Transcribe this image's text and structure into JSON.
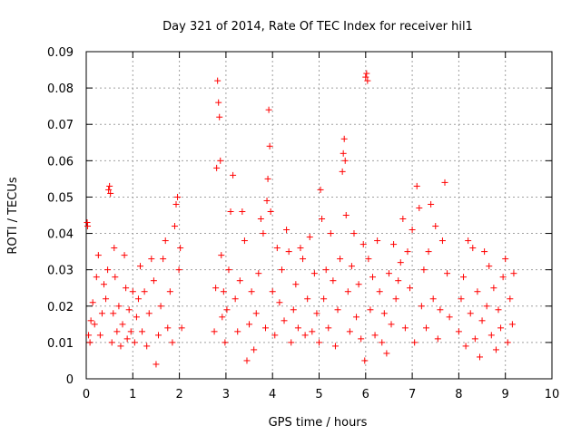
{
  "chart_data": {
    "type": "scatter",
    "title": "Day 321 of 2014, Rate Of TEC Index for receiver hil1",
    "xlabel": "GPS time / hours",
    "ylabel": "ROTI / TECUs",
    "xlim": [
      0,
      10
    ],
    "ylim": [
      0,
      0.09
    ],
    "x_ticks": [
      "0",
      "1",
      "2",
      "3",
      "4",
      "5",
      "6",
      "7",
      "8",
      "9",
      "10"
    ],
    "y_ticks": [
      "0",
      "0.01",
      "0.02",
      "0.03",
      "0.04",
      "0.05",
      "0.06",
      "0.07",
      "0.08",
      "0.09"
    ],
    "grid": true,
    "marker": "+",
    "marker_color": "#ff0000",
    "series": [
      {
        "name": "ROTI",
        "points": [
          [
            0.02,
            0.043
          ],
          [
            0.03,
            0.042
          ],
          [
            0.05,
            0.012
          ],
          [
            0.08,
            0.01
          ],
          [
            0.1,
            0.016
          ],
          [
            0.14,
            0.021
          ],
          [
            0.18,
            0.015
          ],
          [
            0.22,
            0.028
          ],
          [
            0.26,
            0.034
          ],
          [
            0.3,
            0.012
          ],
          [
            0.34,
            0.018
          ],
          [
            0.38,
            0.026
          ],
          [
            0.42,
            0.022
          ],
          [
            0.46,
            0.03
          ],
          [
            0.48,
            0.052
          ],
          [
            0.5,
            0.053
          ],
          [
            0.52,
            0.051
          ],
          [
            0.55,
            0.01
          ],
          [
            0.58,
            0.018
          ],
          [
            0.6,
            0.036
          ],
          [
            0.62,
            0.028
          ],
          [
            0.66,
            0.013
          ],
          [
            0.7,
            0.02
          ],
          [
            0.74,
            0.009
          ],
          [
            0.78,
            0.015
          ],
          [
            0.82,
            0.034
          ],
          [
            0.85,
            0.025
          ],
          [
            0.88,
            0.011
          ],
          [
            0.92,
            0.019
          ],
          [
            0.96,
            0.013
          ],
          [
            1.0,
            0.024
          ],
          [
            1.04,
            0.01
          ],
          [
            1.08,
            0.017
          ],
          [
            1.12,
            0.022
          ],
          [
            1.16,
            0.031
          ],
          [
            1.2,
            0.013
          ],
          [
            1.25,
            0.024
          ],
          [
            1.3,
            0.009
          ],
          [
            1.35,
            0.018
          ],
          [
            1.4,
            0.033
          ],
          [
            1.45,
            0.027
          ],
          [
            1.5,
            0.004
          ],
          [
            1.55,
            0.012
          ],
          [
            1.6,
            0.02
          ],
          [
            1.65,
            0.033
          ],
          [
            1.7,
            0.038
          ],
          [
            1.75,
            0.014
          ],
          [
            1.8,
            0.024
          ],
          [
            1.85,
            0.01
          ],
          [
            1.9,
            0.042
          ],
          [
            1.93,
            0.048
          ],
          [
            1.96,
            0.05
          ],
          [
            1.99,
            0.03
          ],
          [
            2.02,
            0.036
          ],
          [
            2.05,
            0.014
          ],
          [
            2.75,
            0.013
          ],
          [
            2.78,
            0.025
          ],
          [
            2.8,
            0.058
          ],
          [
            2.82,
            0.082
          ],
          [
            2.84,
            0.076
          ],
          [
            2.86,
            0.072
          ],
          [
            2.88,
            0.06
          ],
          [
            2.9,
            0.034
          ],
          [
            2.92,
            0.017
          ],
          [
            2.95,
            0.024
          ],
          [
            2.98,
            0.01
          ],
          [
            3.02,
            0.019
          ],
          [
            3.06,
            0.03
          ],
          [
            3.1,
            0.046
          ],
          [
            3.15,
            0.056
          ],
          [
            3.2,
            0.022
          ],
          [
            3.25,
            0.013
          ],
          [
            3.3,
            0.027
          ],
          [
            3.35,
            0.046
          ],
          [
            3.4,
            0.038
          ],
          [
            3.45,
            0.005
          ],
          [
            3.5,
            0.015
          ],
          [
            3.55,
            0.024
          ],
          [
            3.6,
            0.008
          ],
          [
            3.65,
            0.018
          ],
          [
            3.7,
            0.029
          ],
          [
            3.75,
            0.044
          ],
          [
            3.8,
            0.04
          ],
          [
            3.85,
            0.014
          ],
          [
            3.88,
            0.049
          ],
          [
            3.9,
            0.055
          ],
          [
            3.92,
            0.074
          ],
          [
            3.94,
            0.064
          ],
          [
            3.96,
            0.046
          ],
          [
            4.0,
            0.024
          ],
          [
            4.05,
            0.012
          ],
          [
            4.1,
            0.036
          ],
          [
            4.15,
            0.021
          ],
          [
            4.2,
            0.03
          ],
          [
            4.25,
            0.016
          ],
          [
            4.3,
            0.041
          ],
          [
            4.35,
            0.035
          ],
          [
            4.4,
            0.01
          ],
          [
            4.45,
            0.019
          ],
          [
            4.5,
            0.026
          ],
          [
            4.55,
            0.014
          ],
          [
            4.6,
            0.036
          ],
          [
            4.65,
            0.033
          ],
          [
            4.7,
            0.012
          ],
          [
            4.75,
            0.022
          ],
          [
            4.8,
            0.039
          ],
          [
            4.85,
            0.013
          ],
          [
            4.9,
            0.029
          ],
          [
            4.95,
            0.018
          ],
          [
            5.0,
            0.01
          ],
          [
            5.03,
            0.052
          ],
          [
            5.06,
            0.044
          ],
          [
            5.1,
            0.022
          ],
          [
            5.15,
            0.03
          ],
          [
            5.2,
            0.014
          ],
          [
            5.25,
            0.04
          ],
          [
            5.3,
            0.027
          ],
          [
            5.35,
            0.009
          ],
          [
            5.4,
            0.019
          ],
          [
            5.45,
            0.033
          ],
          [
            5.5,
            0.057
          ],
          [
            5.52,
            0.062
          ],
          [
            5.54,
            0.066
          ],
          [
            5.56,
            0.06
          ],
          [
            5.58,
            0.045
          ],
          [
            5.62,
            0.024
          ],
          [
            5.66,
            0.013
          ],
          [
            5.7,
            0.031
          ],
          [
            5.75,
            0.04
          ],
          [
            5.8,
            0.017
          ],
          [
            5.85,
            0.026
          ],
          [
            5.9,
            0.011
          ],
          [
            5.95,
            0.037
          ],
          [
            5.98,
            0.005
          ],
          [
            6.0,
            0.083
          ],
          [
            6.02,
            0.084
          ],
          [
            6.04,
            0.082
          ],
          [
            6.06,
            0.033
          ],
          [
            6.1,
            0.019
          ],
          [
            6.15,
            0.028
          ],
          [
            6.2,
            0.012
          ],
          [
            6.25,
            0.038
          ],
          [
            6.3,
            0.024
          ],
          [
            6.35,
            0.01
          ],
          [
            6.4,
            0.018
          ],
          [
            6.45,
            0.007
          ],
          [
            6.5,
            0.029
          ],
          [
            6.55,
            0.015
          ],
          [
            6.6,
            0.037
          ],
          [
            6.65,
            0.022
          ],
          [
            6.7,
            0.027
          ],
          [
            6.75,
            0.032
          ],
          [
            6.8,
            0.044
          ],
          [
            6.85,
            0.014
          ],
          [
            6.9,
            0.035
          ],
          [
            6.95,
            0.025
          ],
          [
            7.0,
            0.041
          ],
          [
            7.05,
            0.01
          ],
          [
            7.1,
            0.053
          ],
          [
            7.15,
            0.047
          ],
          [
            7.2,
            0.02
          ],
          [
            7.25,
            0.03
          ],
          [
            7.3,
            0.014
          ],
          [
            7.35,
            0.035
          ],
          [
            7.4,
            0.048
          ],
          [
            7.45,
            0.022
          ],
          [
            7.5,
            0.042
          ],
          [
            7.55,
            0.011
          ],
          [
            7.6,
            0.019
          ],
          [
            7.65,
            0.038
          ],
          [
            7.7,
            0.054
          ],
          [
            7.75,
            0.029
          ],
          [
            7.8,
            0.017
          ],
          [
            8.0,
            0.013
          ],
          [
            8.05,
            0.022
          ],
          [
            8.1,
            0.028
          ],
          [
            8.15,
            0.009
          ],
          [
            8.2,
            0.038
          ],
          [
            8.25,
            0.018
          ],
          [
            8.3,
            0.036
          ],
          [
            8.35,
            0.011
          ],
          [
            8.4,
            0.024
          ],
          [
            8.45,
            0.006
          ],
          [
            8.5,
            0.016
          ],
          [
            8.55,
            0.035
          ],
          [
            8.6,
            0.02
          ],
          [
            8.65,
            0.031
          ],
          [
            8.7,
            0.012
          ],
          [
            8.75,
            0.025
          ],
          [
            8.8,
            0.008
          ],
          [
            8.85,
            0.019
          ],
          [
            8.9,
            0.014
          ],
          [
            8.95,
            0.028
          ],
          [
            9.0,
            0.033
          ],
          [
            9.05,
            0.01
          ],
          [
            9.1,
            0.022
          ],
          [
            9.15,
            0.015
          ],
          [
            9.18,
            0.029
          ]
        ]
      }
    ]
  }
}
